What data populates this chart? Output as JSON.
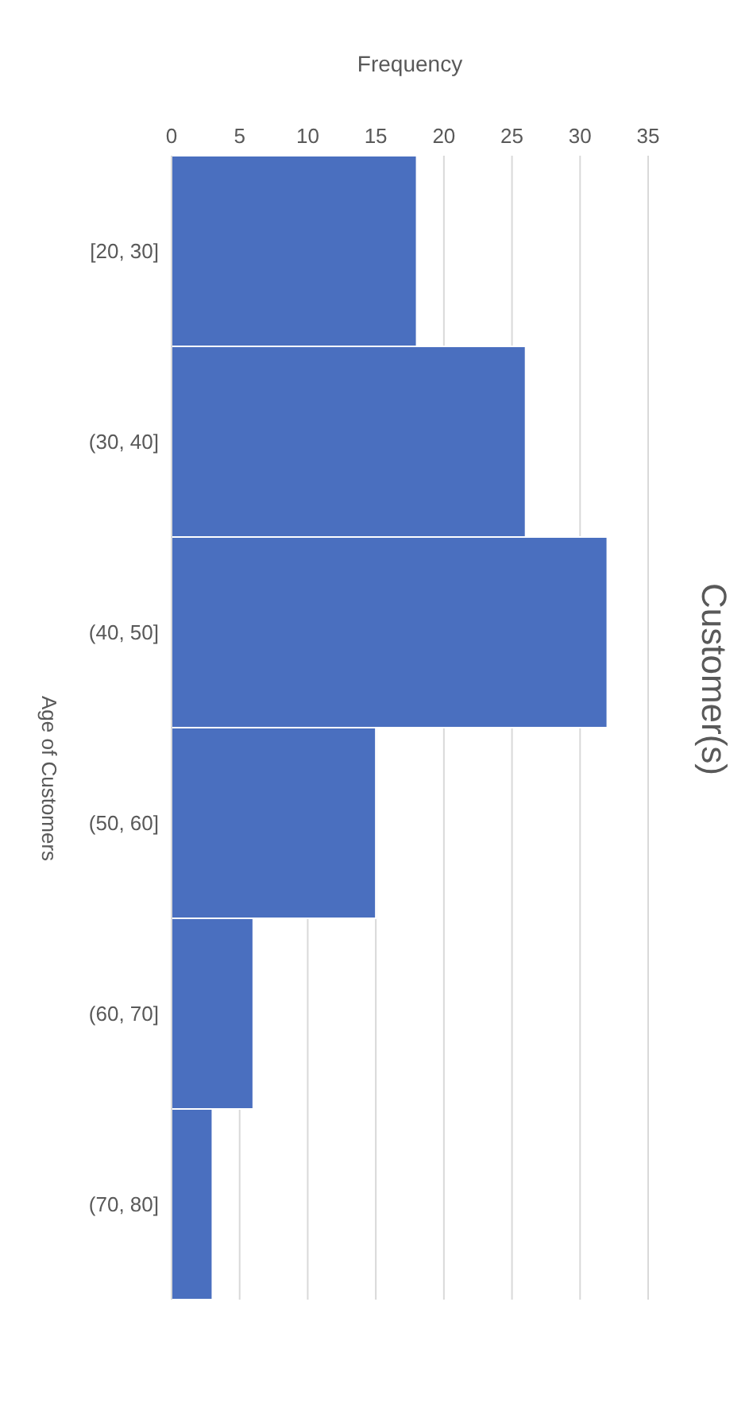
{
  "chart_data": {
    "type": "bar",
    "orientation": "horizontal",
    "title": "Customer(s)",
    "xlabel": "Frequency",
    "ylabel": "Age of Customers",
    "categories": [
      "[20, 30]",
      "(30, 40]",
      "(40, 50]",
      "(50, 60]",
      "(60, 70]",
      "(70, 80]"
    ],
    "values": [
      18,
      26,
      32,
      15,
      6,
      3
    ],
    "color": "#4a6fbf",
    "xlim": [
      0,
      35
    ],
    "xticks": [
      0,
      5,
      10,
      15,
      20,
      25,
      30,
      35
    ],
    "grid": "x"
  }
}
